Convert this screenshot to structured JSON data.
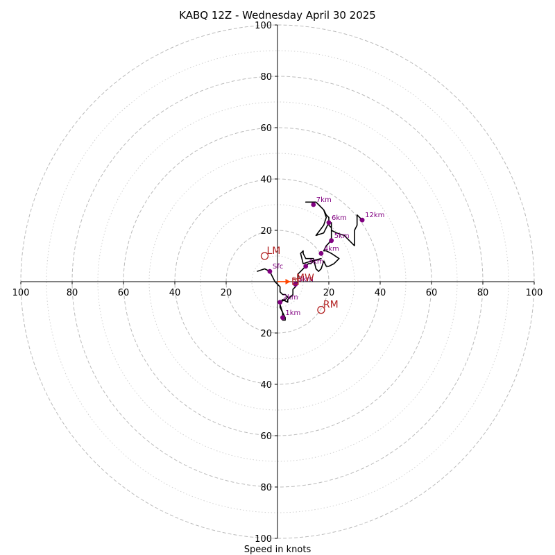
{
  "chart_data": {
    "type": "hodograph",
    "title": "KABQ 12Z - Wednesday April 30 2025",
    "xlabel": "Speed in knots",
    "ylabel": "",
    "range": [
      -100,
      100
    ],
    "tick_values": [
      -100,
      -80,
      -60,
      -40,
      -20,
      20,
      40,
      60,
      80,
      100
    ],
    "tick_labels": [
      "100",
      "80",
      "60",
      "40",
      "20",
      "20",
      "40",
      "60",
      "80",
      "100"
    ],
    "rings_dashed": [
      20,
      40,
      60,
      80,
      100
    ],
    "rings_dotted": [
      10,
      30,
      50,
      70,
      90
    ],
    "colors": {
      "trace": "#000000",
      "height_points": "#800080",
      "storm_motion": "#b22222",
      "shear_vector": "#ff4500",
      "grid": "#bbbbbb"
    },
    "trace": [
      [
        -8,
        4
      ],
      [
        -5,
        5
      ],
      [
        -3,
        4
      ],
      [
        -2,
        2
      ],
      [
        -1,
        0
      ],
      [
        0,
        -1
      ],
      [
        1,
        -2
      ],
      [
        1,
        -4
      ],
      [
        2,
        -5
      ],
      [
        3,
        -5
      ],
      [
        4,
        -6
      ],
      [
        3,
        -7
      ],
      [
        1,
        -8
      ],
      [
        1,
        -10
      ],
      [
        2,
        -12
      ],
      [
        3,
        -14
      ],
      [
        3,
        -15
      ],
      [
        2,
        -15
      ],
      [
        2,
        -12
      ],
      [
        1,
        -9
      ],
      [
        1,
        -8
      ],
      [
        2,
        -7
      ],
      [
        4,
        -8
      ],
      [
        4,
        -7
      ],
      [
        5,
        -6
      ],
      [
        6,
        -5
      ],
      [
        6,
        -3
      ],
      [
        7,
        -2
      ],
      [
        7,
        -1
      ],
      [
        8,
        0
      ],
      [
        8,
        1
      ],
      [
        8,
        3
      ],
      [
        9,
        4
      ],
      [
        10,
        5
      ],
      [
        11,
        6
      ],
      [
        12,
        7
      ],
      [
        13,
        7
      ],
      [
        14,
        8
      ],
      [
        17,
        9
      ],
      [
        13,
        8
      ],
      [
        10,
        7
      ],
      [
        9,
        11
      ],
      [
        10,
        12
      ],
      [
        10,
        11
      ],
      [
        11,
        9
      ],
      [
        14,
        9
      ],
      [
        15,
        5
      ],
      [
        16,
        4
      ],
      [
        17,
        5
      ],
      [
        18,
        8
      ],
      [
        19,
        6
      ],
      [
        20,
        6
      ],
      [
        22,
        7
      ],
      [
        24,
        9
      ],
      [
        21,
        11
      ],
      [
        19,
        12
      ],
      [
        18,
        12
      ],
      [
        19,
        14
      ],
      [
        20,
        15
      ],
      [
        21,
        17
      ],
      [
        21,
        20
      ],
      [
        21,
        23
      ],
      [
        20,
        23
      ],
      [
        18,
        19
      ],
      [
        15,
        18
      ],
      [
        18,
        22
      ],
      [
        19,
        25
      ],
      [
        18,
        28
      ],
      [
        16,
        30
      ],
      [
        15,
        31
      ],
      [
        13,
        31
      ],
      [
        11,
        31
      ],
      [
        15,
        31
      ],
      [
        18,
        28
      ],
      [
        19,
        26
      ],
      [
        20,
        25
      ],
      [
        20,
        22
      ],
      [
        21,
        21
      ],
      [
        21,
        20
      ],
      [
        23,
        19
      ],
      [
        26,
        18
      ],
      [
        30,
        14
      ],
      [
        30,
        17
      ],
      [
        30,
        20
      ],
      [
        31,
        22
      ],
      [
        31,
        26
      ],
      [
        33,
        24
      ]
    ],
    "height_points": [
      {
        "label": "Sfc",
        "u": -3,
        "v": 4
      },
      {
        "label": "1km",
        "u": 2,
        "v": -14
      },
      {
        "label": "2km",
        "u": 1,
        "v": -8
      },
      {
        "label": "3km",
        "u": 7,
        "v": -1
      },
      {
        "label": "4km",
        "u": 11,
        "v": 6
      },
      {
        "label": "4km",
        "u": 17,
        "v": 11
      },
      {
        "label": "5km",
        "u": 21,
        "v": 16
      },
      {
        "label": "6km",
        "u": 20,
        "v": 23
      },
      {
        "label": "7km",
        "u": 14,
        "v": 30
      },
      {
        "label": "12km",
        "u": 33,
        "v": 24
      }
    ],
    "storm_motion": [
      {
        "label": "LM",
        "u": -5,
        "v": 10
      },
      {
        "label": "RM",
        "u": 17,
        "v": -11
      },
      {
        "label": "MW",
        "u": 7,
        "v": 0
      }
    ],
    "shear_vector": {
      "label": "Sh",
      "u_start": 0,
      "v_start": 0,
      "u_end": 5,
      "v_end": 0
    }
  }
}
